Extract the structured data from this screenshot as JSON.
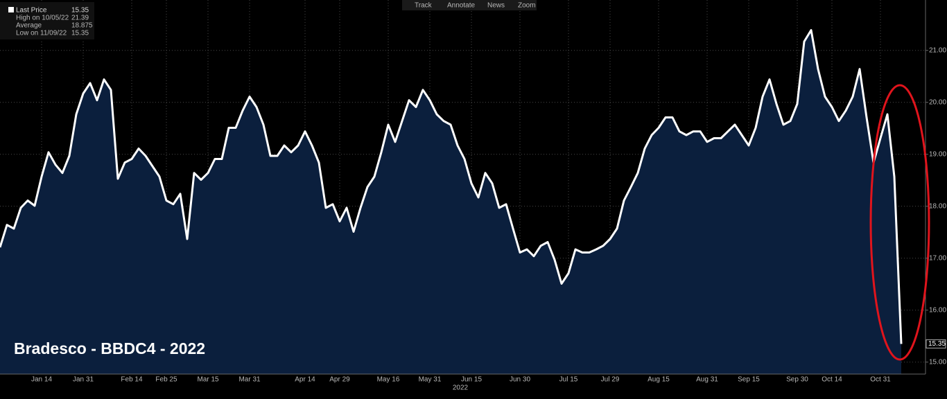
{
  "toolbar": [
    "Track",
    "Annotate",
    "News",
    "Zoom"
  ],
  "legend": [
    {
      "label": "Last Price",
      "value": 15.35
    },
    {
      "label": "High on 10/05/22",
      "value": 21.39
    },
    {
      "label": "Average",
      "value": 18.875
    },
    {
      "label": "Low on 11/09/22",
      "value": 15.35
    }
  ],
  "chart_data": {
    "type": "area",
    "title": "Bradesco - BBDC4 - 2022",
    "x_label": "2022",
    "categories": [
      null,
      null,
      null,
      null,
      null,
      null,
      "Jan 14",
      null,
      null,
      null,
      null,
      null,
      "Jan 31",
      null,
      null,
      null,
      null,
      null,
      null,
      "Feb 14",
      null,
      null,
      null,
      null,
      "Feb 25",
      null,
      null,
      null,
      null,
      null,
      "Mar 15",
      null,
      null,
      null,
      null,
      null,
      "Mar 31",
      null,
      null,
      null,
      null,
      null,
      null,
      null,
      "Apr 14",
      null,
      null,
      null,
      null,
      "Apr 29",
      null,
      null,
      null,
      null,
      null,
      null,
      "May 16",
      null,
      null,
      null,
      null,
      null,
      "May 31",
      null,
      null,
      null,
      null,
      null,
      "Jun 15",
      null,
      null,
      null,
      null,
      null,
      null,
      "Jun 30",
      null,
      null,
      null,
      null,
      null,
      null,
      "Jul 15",
      null,
      null,
      null,
      null,
      null,
      "Jul 29",
      null,
      null,
      null,
      null,
      null,
      null,
      "Aug 15",
      null,
      null,
      null,
      null,
      null,
      null,
      "Aug 31",
      null,
      null,
      null,
      null,
      null,
      "Sep 15",
      null,
      null,
      null,
      null,
      null,
      null,
      "Sep 30",
      null,
      null,
      null,
      null,
      "Oct 14",
      null,
      null,
      null,
      null,
      null,
      null,
      "Oct 31",
      null,
      null,
      null
    ],
    "series": [
      {
        "name": "Last Price",
        "color": "#ffffff",
        "fill": "#0b1f3d",
        "values": [
          17.21,
          17.64,
          17.57,
          17.97,
          18.11,
          18.01,
          18.57,
          19.04,
          18.8,
          18.64,
          18.97,
          19.77,
          20.17,
          20.37,
          20.04,
          20.44,
          20.24,
          18.53,
          18.84,
          18.91,
          19.11,
          18.97,
          18.77,
          18.57,
          18.11,
          18.04,
          18.24,
          17.37,
          18.64,
          18.51,
          18.64,
          18.91,
          18.91,
          19.51,
          19.51,
          19.84,
          20.11,
          19.91,
          19.57,
          18.97,
          18.97,
          19.17,
          19.04,
          19.17,
          19.44,
          19.17,
          18.84,
          17.97,
          18.04,
          17.71,
          17.97,
          17.51,
          17.97,
          18.37,
          18.57,
          19.04,
          19.57,
          19.24,
          19.64,
          20.04,
          19.91,
          20.24,
          20.04,
          19.77,
          19.64,
          19.57,
          19.17,
          18.91,
          18.44,
          18.17,
          18.64,
          18.44,
          17.97,
          18.04,
          17.57,
          17.11,
          17.17,
          17.04,
          17.24,
          17.31,
          16.97,
          16.51,
          16.71,
          17.17,
          17.11,
          17.11,
          17.17,
          17.24,
          17.37,
          17.57,
          18.11,
          18.37,
          18.64,
          19.11,
          19.37,
          19.51,
          19.71,
          19.71,
          19.44,
          19.37,
          19.44,
          19.44,
          19.24,
          19.31,
          19.31,
          19.44,
          19.57,
          19.37,
          19.17,
          19.51,
          20.11,
          20.44,
          19.97,
          19.57,
          19.64,
          19.97,
          21.17,
          21.39,
          20.64,
          20.11,
          19.91,
          19.64,
          19.84,
          20.11,
          20.64,
          19.71,
          18.84,
          19.31,
          19.77,
          18.57,
          15.35
        ]
      }
    ],
    "ylim": [
      14.77,
      21.97
    ],
    "yticks": [
      {
        "value": 15,
        "label": "15.00"
      },
      {
        "value": 16,
        "label": "16.00"
      },
      {
        "value": 17,
        "label": "17.00"
      },
      {
        "value": 18,
        "label": "18.00"
      },
      {
        "value": 19,
        "label": "19.00"
      },
      {
        "value": 20,
        "label": "20.00"
      },
      {
        "value": 21,
        "label": "21.00"
      }
    ],
    "grid": true
  }
}
